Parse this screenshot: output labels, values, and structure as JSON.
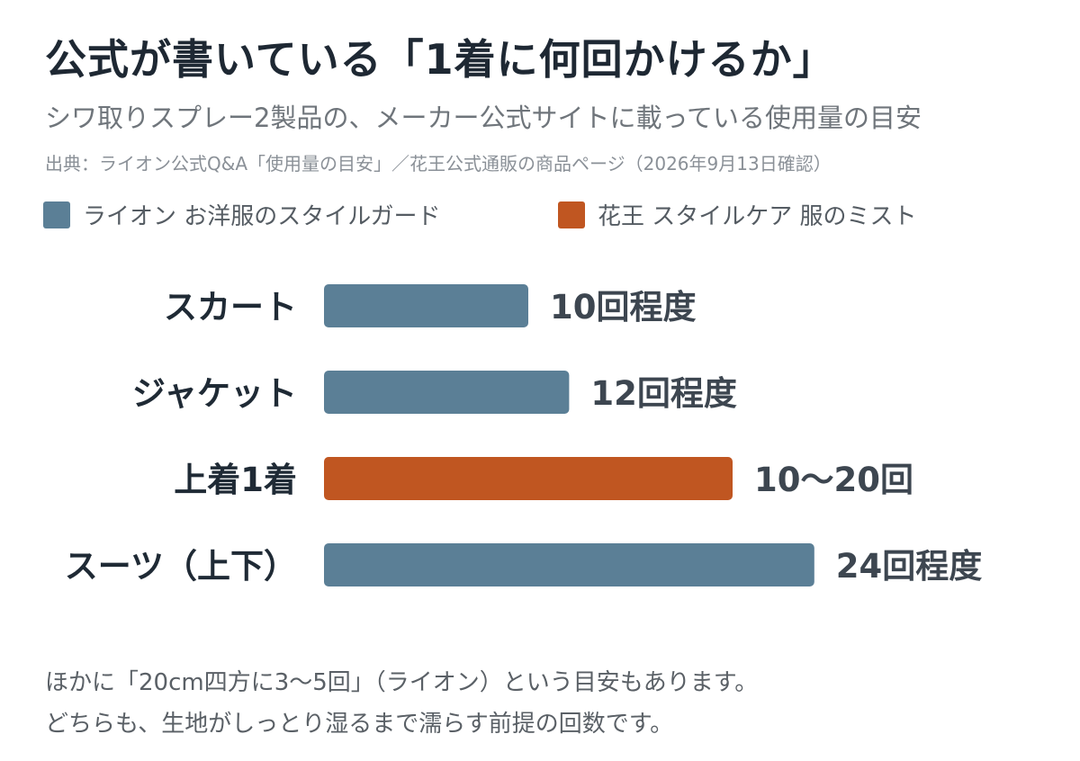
{
  "title": "公式が書いている「1着に何回かけるか」",
  "subtitle": "シワ取りスプレー2製品の、メーカー公式サイトに載っている使用量の目安",
  "source": "出典：ライオン公式Q&A「使用量の目安」／花王公式通販の商品ページ（2026年9月13日確認）",
  "legend": [
    {
      "label": "ライオン お洋服のスタイルガード",
      "color": "#5b7f96"
    },
    {
      "label": "花王 スタイルケア 服のミスト",
      "color": "#c05621"
    }
  ],
  "chart_data": {
    "type": "bar",
    "orientation": "horizontal",
    "categories": [
      "スカート",
      "ジャケット",
      "上着1着",
      "スーツ（上下）"
    ],
    "values": [
      10,
      12,
      20,
      24
    ],
    "range_low": [
      null,
      null,
      10,
      null
    ],
    "series_index": [
      0,
      0,
      1,
      0
    ],
    "data_labels": [
      "10回程度",
      "12回程度",
      "10〜20回",
      "24回程度"
    ],
    "colors": [
      "#5b7f96",
      "#c05621"
    ],
    "title": "",
    "xlabel": "",
    "ylabel": "",
    "xlim": [
      0,
      24
    ],
    "grid": false,
    "legend_position": "top-left"
  },
  "notes": [
    "ほかに「20cm四方に3〜5回」（ライオン）という目安もあります。",
    "どちらも、生地がしっとり湿るまで濡らす前提の回数です。"
  ]
}
